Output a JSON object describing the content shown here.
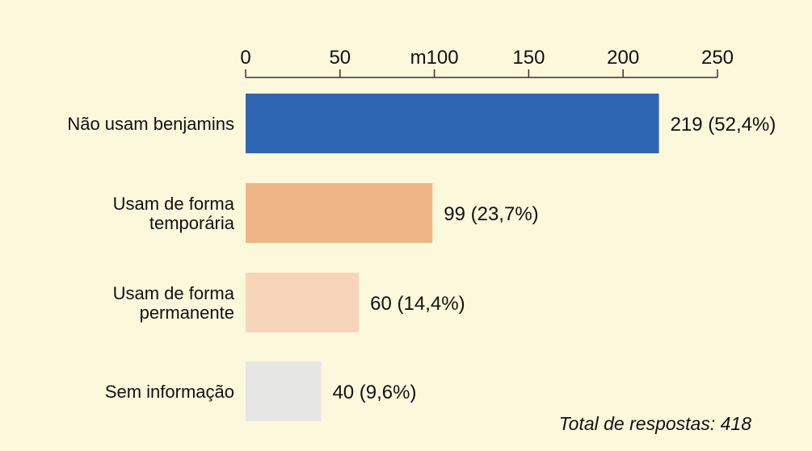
{
  "chart_data": {
    "type": "bar",
    "orientation": "horizontal",
    "xlim": [
      0,
      250
    ],
    "ticks": [
      {
        "value": 0,
        "label": "0"
      },
      {
        "value": 50,
        "label": "50"
      },
      {
        "value": 100,
        "label": "m100"
      },
      {
        "value": 150,
        "label": "150"
      },
      {
        "value": 200,
        "label": "200"
      },
      {
        "value": 250,
        "label": "250"
      }
    ],
    "categories": [
      [
        "Não usam benjamins"
      ],
      [
        "Usam de forma",
        "temporária"
      ],
      [
        "Usam de forma",
        "permanente"
      ],
      [
        "Sem informação"
      ]
    ],
    "values": [
      219,
      99,
      60,
      40
    ],
    "value_labels": [
      "219 (52,4%)",
      "99 (23,7%)",
      "60 (14,4%)",
      "40 (9,6%)"
    ],
    "colors": [
      "#2f66b3",
      "#efb587",
      "#f6d5ba",
      "#e6e6e4"
    ],
    "axis_position": "top",
    "grid": false
  },
  "footer": {
    "total_text": "Total de respostas: 418"
  },
  "colors": {
    "background": "#fcf8dc",
    "axis": "#333333",
    "text": "#111111"
  }
}
